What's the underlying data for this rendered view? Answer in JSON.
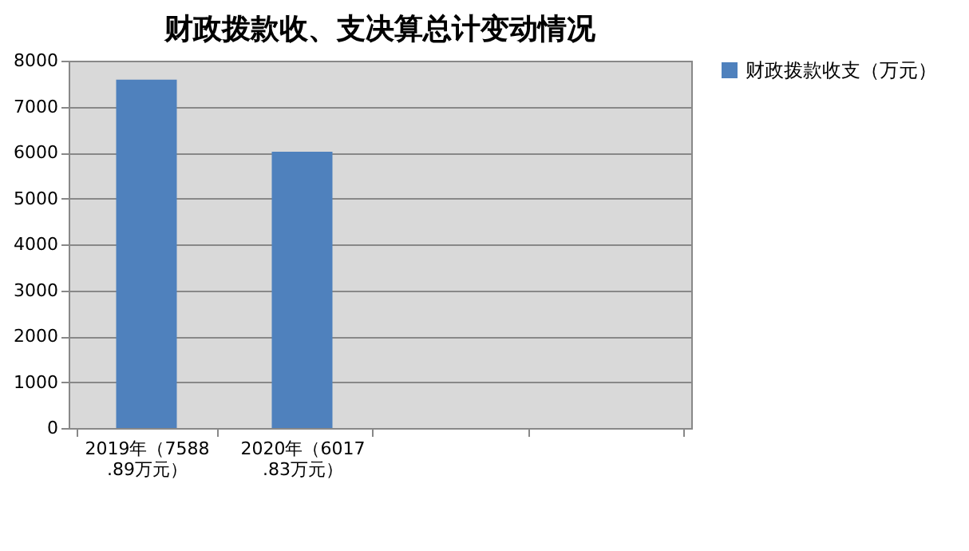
{
  "chart_data": {
    "type": "bar",
    "title": "财政拨款收、支决算总计变动情况",
    "categories": [
      "2019年（7588.89万元）",
      "2020年（6017.83万元）",
      null,
      null
    ],
    "series": [
      {
        "name": "财政拨款收支（万元）",
        "color": "#4f81bd",
        "values": [
          7588.89,
          6017.83,
          null,
          null
        ]
      }
    ],
    "ylim": [
      0,
      8000
    ],
    "yticks": [
      0,
      1000,
      2000,
      3000,
      4000,
      5000,
      6000,
      7000,
      8000
    ],
    "grid": "y",
    "legend": "right"
  }
}
